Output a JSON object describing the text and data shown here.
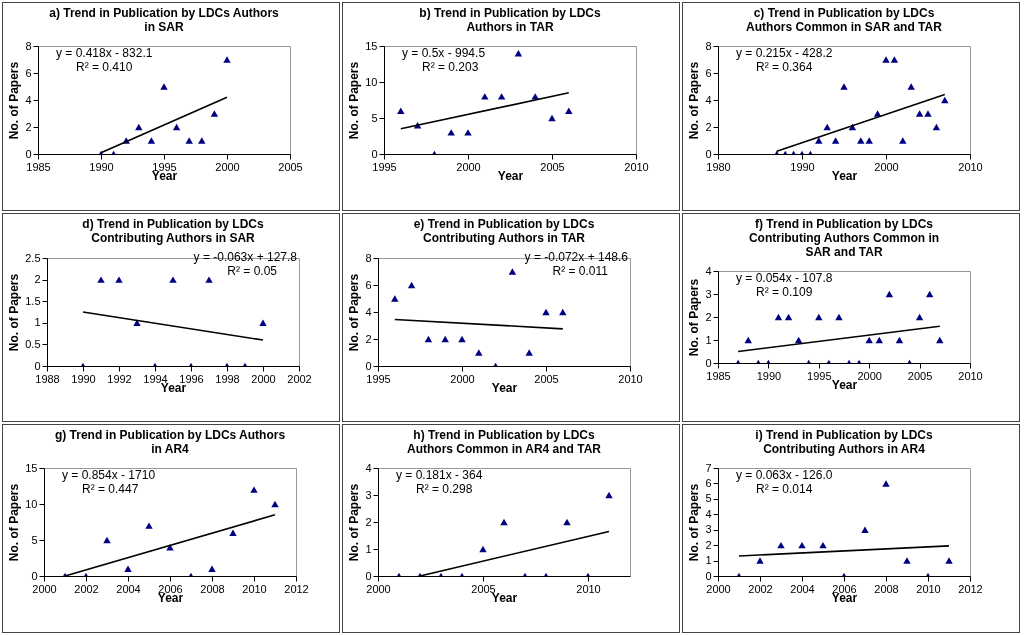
{
  "chart_data": [
    {
      "type": "scatter",
      "title": "a) Trend in Publication by LDCs Authors\nin SAR",
      "xlabel": "Year",
      "ylabel": "No. of  Papers",
      "x": [
        1990,
        1991,
        1992,
        1993,
        1994,
        1995,
        1996,
        1997,
        1998,
        1999,
        2000
      ],
      "xlim": [
        1985,
        2005
      ],
      "xticks": [
        1985,
        1990,
        1995,
        2000,
        2005
      ],
      "ylim": [
        0,
        8
      ],
      "yticks": [
        0,
        2,
        4,
        6,
        8
      ],
      "annotations": [
        "y = 0.418x - 832.1",
        "R² = 0.410"
      ],
      "series": [
        {
          "type": "scatter",
          "marker": "triangle",
          "color": "#000080",
          "values": [
            0,
            0,
            1,
            2,
            1,
            5,
            2,
            1,
            1,
            3,
            7
          ]
        },
        {
          "type": "line",
          "color": "#000000",
          "x": [
            1990,
            2000
          ],
          "values": [
            0.1,
            4.2
          ]
        }
      ]
    },
    {
      "type": "scatter",
      "title": "b) Trend in Publication by LDCs\nAuthors in TAR",
      "xlabel": "Year",
      "ylabel": "No. of  Papers",
      "x": [
        1996,
        1997,
        1998,
        1999,
        2000,
        2001,
        2002,
        2003,
        2004,
        2005,
        2006
      ],
      "xlim": [
        1995,
        2010
      ],
      "xticks": [
        1995,
        2000,
        2005,
        2010
      ],
      "ylim": [
        0,
        15
      ],
      "yticks": [
        0,
        5,
        10,
        15
      ],
      "annotations": [
        "y = 0.5x - 994.5",
        "R² = 0.203"
      ],
      "series": [
        {
          "type": "scatter",
          "marker": "triangle",
          "color": "#000080",
          "values": [
            6,
            4,
            0,
            3,
            3,
            8,
            8,
            14,
            8,
            5,
            6
          ]
        },
        {
          "type": "line",
          "color": "#000000",
          "x": [
            1996,
            2006
          ],
          "values": [
            3.5,
            8.5
          ]
        }
      ]
    },
    {
      "type": "scatter",
      "title": "c) Trend in Publication by LDCs\nAuthors Common in SAR and TAR",
      "xlabel": "Year",
      "ylabel": "No. of  Papers",
      "x": [
        1987,
        1988,
        1989,
        1990,
        1991,
        1992,
        1993,
        1994,
        1995,
        1996,
        1997,
        1998,
        1999,
        2000,
        2001,
        2002,
        2003,
        2004,
        2005,
        2006,
        2007
      ],
      "xlim": [
        1980,
        2010
      ],
      "xticks": [
        1980,
        1990,
        2000,
        2010
      ],
      "ylim": [
        0,
        8
      ],
      "yticks": [
        0,
        2,
        4,
        6,
        8
      ],
      "annotations": [
        "y = 0.215x - 428.2",
        "R² = 0.364"
      ],
      "series": [
        {
          "type": "scatter",
          "marker": "triangle",
          "color": "#000080",
          "values": [
            0,
            0,
            0,
            0,
            0,
            1,
            2,
            1,
            5,
            2,
            1,
            1,
            3,
            7,
            7,
            1,
            5,
            3,
            3,
            2,
            4
          ]
        },
        {
          "type": "line",
          "color": "#000000",
          "x": [
            1987,
            2007
          ],
          "values": [
            0.2,
            4.4
          ]
        }
      ]
    },
    {
      "type": "scatter",
      "title": "d) Trend in Publication by LDCs\nContributing Authors in SAR",
      "xlabel": "Year",
      "ylabel": "No. of  Papers",
      "x": [
        1990,
        1991,
        1992,
        1993,
        1994,
        1995,
        1996,
        1997,
        1998,
        1999,
        2000
      ],
      "xlim": [
        1988,
        2002
      ],
      "xticks": [
        1988,
        1990,
        1992,
        1994,
        1996,
        1998,
        2000,
        2002
      ],
      "ylim": [
        0,
        2.5
      ],
      "yticks": [
        0,
        0.5,
        1,
        1.5,
        2,
        2.5
      ],
      "annotations": [
        "y = -0.063x + 127.8",
        "R² = 0.05"
      ],
      "series": [
        {
          "type": "scatter",
          "marker": "triangle",
          "color": "#000080",
          "values": [
            0,
            2,
            2,
            1,
            0,
            2,
            0,
            2,
            0,
            0,
            1
          ]
        },
        {
          "type": "line",
          "color": "#000000",
          "x": [
            1990,
            2000
          ],
          "values": [
            1.25,
            0.6
          ]
        }
      ]
    },
    {
      "type": "scatter",
      "title": "e) Trend in Publication by LDCs\nContributing Authors in TAR",
      "xlabel": "Year",
      "ylabel": "No. of  Papers",
      "x": [
        1996,
        1997,
        1998,
        1999,
        2000,
        2001,
        2002,
        2003,
        2004,
        2005,
        2006
      ],
      "xlim": [
        1995,
        2010
      ],
      "xticks": [
        1995,
        2000,
        2005,
        2010
      ],
      "ylim": [
        0,
        8
      ],
      "yticks": [
        0,
        2,
        4,
        6,
        8
      ],
      "annotations": [
        "y = -0.072x + 148.6",
        "R² = 0.011"
      ],
      "series": [
        {
          "type": "scatter",
          "marker": "triangle",
          "color": "#000080",
          "values": [
            5,
            6,
            2,
            2,
            2,
            1,
            0,
            7,
            1,
            4,
            4
          ]
        },
        {
          "type": "line",
          "color": "#000000",
          "x": [
            1996,
            2006
          ],
          "values": [
            3.45,
            2.75
          ]
        }
      ]
    },
    {
      "type": "scatter",
      "title": "f) Trend in Publication by LDCs\nContributing Authors Common in\nSAR and TAR",
      "xlabel": "Year",
      "ylabel": "No. of  Papers",
      "x": [
        1987,
        1988,
        1989,
        1990,
        1991,
        1992,
        1993,
        1994,
        1995,
        1996,
        1997,
        1998,
        1999,
        2000,
        2001,
        2002,
        2003,
        2004,
        2005,
        2006,
        2007
      ],
      "xlim": [
        1985,
        2010
      ],
      "xticks": [
        1985,
        1990,
        1995,
        2000,
        2005,
        2010
      ],
      "ylim": [
        0,
        4
      ],
      "yticks": [
        0,
        1,
        2,
        3,
        4
      ],
      "annotations": [
        "y = 0.054x - 107.8",
        "R² = 0.109"
      ],
      "series": [
        {
          "type": "scatter",
          "marker": "triangle",
          "color": "#000080",
          "values": [
            0,
            1,
            0,
            0,
            2,
            2,
            1,
            0,
            2,
            0,
            2,
            0,
            0,
            1,
            1,
            3,
            1,
            0,
            2,
            3,
            1
          ]
        },
        {
          "type": "line",
          "color": "#000000",
          "x": [
            1987,
            2007
          ],
          "values": [
            0.5,
            1.6
          ]
        }
      ]
    },
    {
      "type": "scatter",
      "title": "g) Trend in Publication by LDCs Authors\nin AR4",
      "xlabel": "Year",
      "ylabel": "No. of  Papers",
      "x": [
        2001,
        2002,
        2003,
        2004,
        2005,
        2006,
        2007,
        2008,
        2009,
        2010,
        2011
      ],
      "xlim": [
        2000,
        2012
      ],
      "xticks": [
        2000,
        2002,
        2004,
        2006,
        2008,
        2010,
        2012
      ],
      "ylim": [
        0,
        15
      ],
      "yticks": [
        0,
        5,
        10,
        15
      ],
      "annotations": [
        "y = 0.854x - 1710",
        "R² = 0.447"
      ],
      "series": [
        {
          "type": "scatter",
          "marker": "triangle",
          "color": "#000080",
          "values": [
            0,
            0,
            5,
            1,
            7,
            4,
            0,
            1,
            6,
            12,
            10
          ]
        },
        {
          "type": "line",
          "color": "#000000",
          "x": [
            2001,
            2011
          ],
          "values": [
            0,
            8.5
          ]
        }
      ]
    },
    {
      "type": "scatter",
      "title": "h) Trend in Publication by LDCs\nAuthors Common in AR4 and TAR",
      "xlabel": "Year",
      "ylabel": "No. of  Papers",
      "x": [
        2001,
        2002,
        2003,
        2004,
        2005,
        2006,
        2007,
        2008,
        2009,
        2010,
        2011
      ],
      "xlim": [
        2000,
        2012
      ],
      "xticks": [
        2000,
        2005,
        2010
      ],
      "ylim": [
        0,
        4
      ],
      "yticks": [
        0,
        1,
        2,
        3,
        4
      ],
      "annotations": [
        "y = 0.181x - 364",
        "R² = 0.298"
      ],
      "series": [
        {
          "type": "scatter",
          "marker": "triangle",
          "color": "#000080",
          "values": [
            0,
            0,
            0,
            0,
            1,
            2,
            0,
            0,
            2,
            0,
            3
          ]
        },
        {
          "type": "line",
          "color": "#000000",
          "x": [
            2002,
            2011
          ],
          "values": [
            0,
            1.65
          ]
        }
      ]
    },
    {
      "type": "scatter",
      "title": "i) Trend in Publication by LDCs\nContributing Authors in AR4",
      "xlabel": "Year",
      "ylabel": "No. of  Papers",
      "x": [
        2001,
        2002,
        2003,
        2004,
        2005,
        2006,
        2007,
        2008,
        2009,
        2010,
        2011
      ],
      "xlim": [
        2000,
        2012
      ],
      "xticks": [
        2000,
        2002,
        2004,
        2006,
        2008,
        2010,
        2012
      ],
      "ylim": [
        0,
        7
      ],
      "yticks": [
        0,
        1,
        2,
        3,
        4,
        5,
        6,
        7
      ],
      "annotations": [
        "y = 0.063x - 126.0",
        "R² = 0.014"
      ],
      "series": [
        {
          "type": "scatter",
          "marker": "triangle",
          "color": "#000080",
          "values": [
            0,
            1,
            2,
            2,
            2,
            0,
            3,
            6,
            1,
            0,
            1
          ]
        },
        {
          "type": "line",
          "color": "#000000",
          "x": [
            2001,
            2011
          ],
          "values": [
            1.3,
            1.95
          ]
        }
      ]
    }
  ]
}
